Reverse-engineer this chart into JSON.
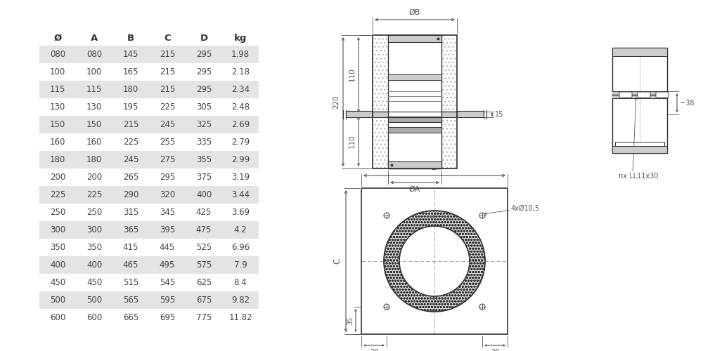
{
  "bg_color": "#ffffff",
  "table": {
    "headers": [
      "Ø",
      "A",
      "B",
      "C",
      "D",
      "kg"
    ],
    "rows": [
      [
        "080",
        "080",
        "145",
        "215",
        "295",
        "1.98"
      ],
      [
        "100",
        "100",
        "165",
        "215",
        "295",
        "2.18"
      ],
      [
        "115",
        "115",
        "180",
        "215",
        "295",
        "2.34"
      ],
      [
        "130",
        "130",
        "195",
        "225",
        "305",
        "2.48"
      ],
      [
        "150",
        "150",
        "215",
        "245",
        "325",
        "2.69"
      ],
      [
        "160",
        "160",
        "225",
        "255",
        "335",
        "2.79"
      ],
      [
        "180",
        "180",
        "245",
        "275",
        "355",
        "2.99"
      ],
      [
        "200",
        "200",
        "265",
        "295",
        "375",
        "3.19"
      ],
      [
        "225",
        "225",
        "290",
        "320",
        "400",
        "3.44"
      ],
      [
        "250",
        "250",
        "315",
        "345",
        "425",
        "3.69"
      ],
      [
        "300",
        "300",
        "365",
        "395",
        "475",
        "4.2"
      ],
      [
        "350",
        "350",
        "415",
        "445",
        "525",
        "6.96"
      ],
      [
        "400",
        "400",
        "465",
        "495",
        "575",
        "7.9"
      ],
      [
        "450",
        "450",
        "515",
        "545",
        "625",
        "8.4"
      ],
      [
        "500",
        "500",
        "565",
        "595",
        "675",
        "9.82"
      ],
      [
        "600",
        "600",
        "665",
        "695",
        "775",
        "11.82"
      ]
    ],
    "shaded_rows": [
      0,
      2,
      4,
      6,
      8,
      10,
      12,
      14
    ],
    "shade_color": "#e4e4e4",
    "text_color": "#444444",
    "header_color": "#333333"
  },
  "line_color": "#555555",
  "dim_color": "#555555",
  "hatch_color": "#bbbbbb",
  "light_gray": "#cccccc",
  "mid_gray": "#888888",
  "dark_line": "#333333"
}
